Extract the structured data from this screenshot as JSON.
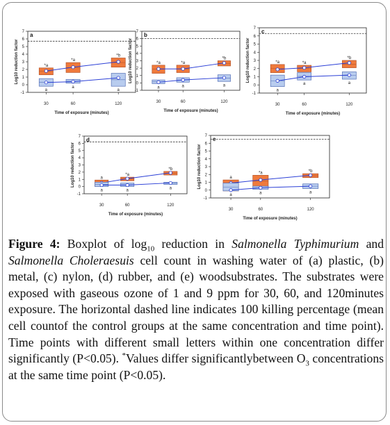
{
  "colors": {
    "high": "#ef7a3c",
    "high_edge": "#b5542a",
    "low": "#b8ccee",
    "low_edge": "#5571b7",
    "line": "#2b3fd6",
    "dash": "#333333"
  },
  "chart_data": [
    {
      "type": "box",
      "panel": "a",
      "xlabel": "Time of exposure (minutes)",
      "ylabel": "Log10 reduction factor",
      "x_ticks": [
        "30",
        "60",
        "120"
      ],
      "ylim": [
        -1,
        7
      ],
      "y_ticks": [
        "-1",
        "0",
        "1",
        "2",
        "3",
        "4",
        "5",
        "6",
        "7"
      ],
      "dashed_line": 5.7,
      "series": [
        {
          "id": "high",
          "boxes": [
            [
              1.3,
              2.2
            ],
            [
              1.6,
              2.9
            ],
            [
              2.3,
              3.5
            ]
          ],
          "means": [
            1.8,
            2.3,
            3.0
          ],
          "labels": [
            "*a",
            "*a",
            "*b"
          ]
        },
        {
          "id": "low",
          "boxes": [
            [
              -0.2,
              0.8
            ],
            [
              0.2,
              0.7
            ],
            [
              -0.2,
              1.5
            ]
          ],
          "means": [
            0.3,
            0.4,
            0.9
          ],
          "labels": [
            "a",
            "a",
            "a"
          ]
        }
      ]
    },
    {
      "type": "box",
      "panel": "b",
      "xlabel": "Time of exposure (minutes)",
      "ylabel": "Log10 reduction factor",
      "x_ticks": [
        "30",
        "60",
        "120"
      ],
      "ylim": [
        -1,
        7
      ],
      "y_ticks": [
        "-1",
        "0",
        "1",
        "2",
        "3",
        "4",
        "5",
        "6",
        "7"
      ],
      "dashed_line": 6.0,
      "series": [
        {
          "id": "high",
          "boxes": [
            [
              1.3,
              2.4
            ],
            [
              1.4,
              2.4
            ],
            [
              2.3,
              3.0
            ]
          ],
          "means": [
            1.9,
            1.9,
            2.7
          ],
          "labels": [
            "*a",
            "*a",
            "*b"
          ]
        },
        {
          "id": "low",
          "boxes": [
            [
              -0.1,
              0.4
            ],
            [
              0.1,
              0.7
            ],
            [
              0.2,
              1.1
            ]
          ],
          "means": [
            0.1,
            0.4,
            0.7
          ],
          "labels": [
            "a",
            "a",
            "a"
          ]
        }
      ]
    },
    {
      "type": "box",
      "panel": "c",
      "xlabel": "Time of exposure (minutes)",
      "ylabel": "Log10 reduction factor",
      "x_ticks": [
        "30",
        "60",
        "120"
      ],
      "ylim": [
        -1,
        7
      ],
      "y_ticks": [
        "-1",
        "0",
        "1",
        "2",
        "3",
        "4",
        "5",
        "6",
        "7"
      ],
      "dashed_line": 6.3,
      "series": [
        {
          "id": "high",
          "boxes": [
            [
              1.5,
              2.5
            ],
            [
              1.6,
              2.4
            ],
            [
              2.1,
              3.0
            ]
          ],
          "means": [
            1.9,
            2.1,
            2.7
          ],
          "labels": [
            "*a",
            "*a",
            "*b"
          ]
        },
        {
          "id": "low",
          "boxes": [
            [
              -0.2,
              1.2
            ],
            [
              0.6,
              1.5
            ],
            [
              0.7,
              1.6
            ]
          ],
          "means": [
            0.5,
            1.0,
            1.2
          ],
          "labels": [
            "a",
            "a",
            "a"
          ]
        }
      ]
    },
    {
      "type": "box",
      "panel": "d",
      "xlabel": "Time of exposure (minutes)",
      "ylabel": "Log10 reduction factor",
      "x_ticks": [
        "30",
        "60",
        "120"
      ],
      "ylim": [
        -1,
        7
      ],
      "y_ticks": [
        "-1",
        "0",
        "1",
        "2",
        "3",
        "4",
        "5",
        "6",
        "7"
      ],
      "dashed_line": 6.2,
      "series": [
        {
          "id": "high",
          "boxes": [
            [
              0,
              0.9
            ],
            [
              0.8,
              1.3
            ],
            [
              1.6,
              2.1
            ]
          ],
          "means": [
            0.5,
            1.1,
            1.9
          ],
          "labels": [
            "a",
            "*a",
            "*b"
          ]
        },
        {
          "id": "low",
          "boxes": [
            [
              0,
              0.6
            ],
            [
              0,
              0.5
            ],
            [
              0.3,
              0.6
            ]
          ],
          "means": [
            0.2,
            0.2,
            0.5
          ],
          "labels": [
            "a",
            "a",
            "a"
          ]
        }
      ]
    },
    {
      "type": "box",
      "panel": "e",
      "xlabel": "Time of exposure (minutes)",
      "ylabel": "Log10 reduction factor",
      "x_ticks": [
        "30",
        "60",
        "120"
      ],
      "ylim": [
        -1,
        7
      ],
      "y_ticks": [
        "-1",
        "0",
        "1",
        "2",
        "3",
        "4",
        "5",
        "6",
        "7"
      ],
      "dashed_line": 6.5,
      "series": [
        {
          "id": "high",
          "boxes": [
            [
              -0.1,
              1.3
            ],
            [
              0.4,
              1.9
            ],
            [
              1.6,
              2.1
            ]
          ],
          "means": [
            0.9,
            1.3,
            1.9
          ],
          "labels": [
            "a",
            "*a",
            "*b"
          ]
        },
        {
          "id": "low",
          "boxes": [
            [
              -0.1,
              0.9
            ],
            [
              0.1,
              0.5
            ],
            [
              0.2,
              0.8
            ]
          ],
          "means": [
            0.0,
            0.3,
            0.5
          ],
          "labels": [
            "a",
            "a",
            "a"
          ]
        }
      ]
    }
  ],
  "caption": {
    "label": "Figure 4:",
    "t1": " Boxplot of log",
    "t1_sub": "10",
    "t2": " reduction in ",
    "sp1": "Salmonella Typhimurium",
    "t3": " and ",
    "sp2": "Salmonella Choleraesuis",
    "t4": " cell count in washing water of (a) plastic, (b) metal, (c) nylon, (d) rubber, and (e) woodsubstrates. The substrates were exposed with gaseous ozone of 1 and 9 ppm for 30, 60, and 120minutes exposure. The horizontal dashed line indicates 100 killing percentage (mean cell countof the control groups at the same concentration and time point). Time points with different small letters within one concentration differ significantly (P<0.05). ",
    "star": "*",
    "t5": "Values differ significantlybetween O",
    "t5_sub": "3",
    "t6": " concentrations at the same time point (P<0.05)."
  }
}
